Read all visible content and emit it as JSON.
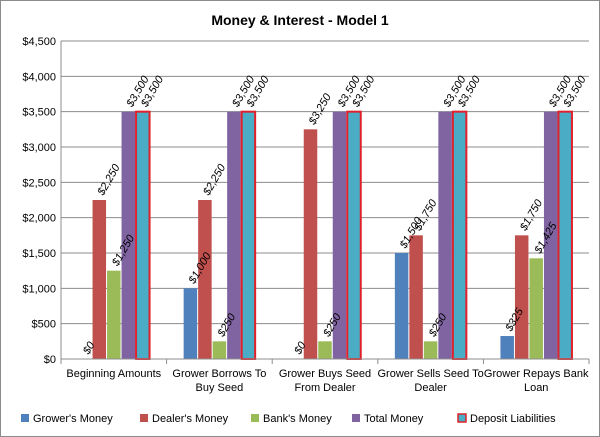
{
  "chart_data": {
    "type": "bar",
    "title": "Money & Interest - Model 1",
    "xlabel": "",
    "ylabel": "",
    "ylim": [
      0,
      4500
    ],
    "yticks": [
      "$0",
      "$500",
      "$1,000",
      "$1,500",
      "$2,000",
      "$2,500",
      "$3,000",
      "$3,500",
      "$4,000",
      "$4,500"
    ],
    "ytick_values": [
      0,
      500,
      1000,
      1500,
      2000,
      2500,
      3000,
      3500,
      4000,
      4500
    ],
    "grid": true,
    "legend_position": "bottom",
    "categories": [
      [
        "Beginning Amounts"
      ],
      [
        "Grower Borrows To",
        "Buy Seed"
      ],
      [
        "Grower Buys Seed",
        "From Dealer"
      ],
      [
        "Grower Sells Seed To",
        "Dealer"
      ],
      [
        "Grower Repays Bank",
        "Loan"
      ]
    ],
    "series": [
      {
        "name": "Grower's Money",
        "color": "#4f81bd",
        "values": [
          0,
          1000,
          0,
          1500,
          325
        ],
        "labels": [
          "$0",
          "$1,000",
          "$0",
          "$1,500",
          "$325"
        ]
      },
      {
        "name": "Dealer's Money",
        "color": "#c0504d",
        "values": [
          2250,
          2250,
          3250,
          1750,
          1750
        ],
        "labels": [
          "$2,250",
          "$2,250",
          "$3,250",
          "$1,750",
          "$1,750"
        ]
      },
      {
        "name": "Bank's Money",
        "color": "#9bbb59",
        "values": [
          1250,
          250,
          250,
          250,
          1425
        ],
        "labels": [
          "$1,250",
          "$250",
          "$250",
          "$250",
          "$1,425"
        ]
      },
      {
        "name": "Total Money",
        "color": "#8064a2",
        "values": [
          3500,
          3500,
          3500,
          3500,
          3500
        ],
        "labels": [
          "$3,500",
          "$3,500",
          "$3,500",
          "$3,500",
          "$3,500"
        ]
      },
      {
        "name": "Deposit Liabilities",
        "color": "#4bacc6",
        "border": "#e0202a",
        "values": [
          3500,
          3500,
          3500,
          3500,
          3500
        ],
        "labels": [
          "$3,500",
          "$3,500",
          "$3,500",
          "$3,500",
          "$3,500"
        ]
      }
    ]
  }
}
